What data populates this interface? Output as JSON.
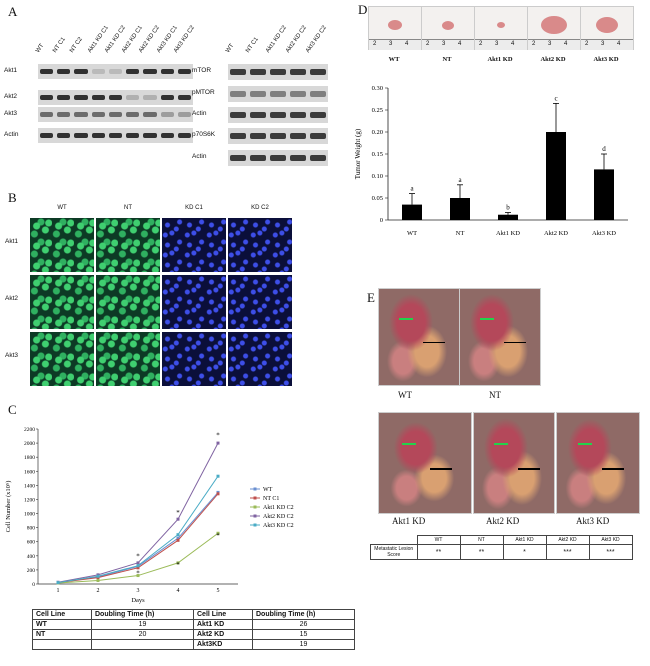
{
  "panels": {
    "a": "A",
    "b": "B",
    "c": "C",
    "d": "D",
    "e": "E"
  },
  "blot_left": {
    "lanes": [
      "WT",
      "NT C1",
      "NT C2",
      "Akt1 KD C1",
      "Akt1 KD C2",
      "Akt2 KD C1",
      "Akt2 KD C2",
      "Akt3 KD C1",
      "Akt3 KD C2"
    ],
    "rows": [
      "Akt1",
      "Akt2",
      "Akt3",
      "Actin"
    ]
  },
  "blot_right": {
    "lanes": [
      "WT",
      "NT C1",
      "Akt1 KD C2",
      "Akt2 KD C2",
      "Akt3 KD C2"
    ],
    "rows": [
      "mTOR",
      "pMTOR",
      "Actin",
      "p70S6K",
      "Actin"
    ]
  },
  "if": {
    "columns": [
      "WT",
      "NT",
      "KD C1",
      "KD C2"
    ],
    "rows": [
      "Akt1",
      "Akt2",
      "Akt3"
    ]
  },
  "chart_data": [
    {
      "type": "line",
      "xlabel": "Days",
      "ylabel": "Cell Number (x10⁵)",
      "x": [
        1,
        2,
        3,
        4,
        5
      ],
      "ylim": [
        0,
        2200
      ],
      "yticks": [
        0,
        200,
        400,
        600,
        800,
        1000,
        1200,
        1400,
        1600,
        1800,
        2000,
        2200
      ],
      "series": [
        {
          "name": "WT",
          "color": "#6a8fd0",
          "values": [
            20,
            100,
            250,
            650,
            1300
          ]
        },
        {
          "name": "NT C1",
          "color": "#c0504d",
          "values": [
            20,
            90,
            230,
            620,
            1280
          ]
        },
        {
          "name": "Akt1 KD C2",
          "color": "#9bbb59",
          "values": [
            15,
            50,
            120,
            300,
            720
          ]
        },
        {
          "name": "Akt2 KD C2",
          "color": "#8064a2",
          "values": [
            25,
            130,
            300,
            920,
            2000
          ]
        },
        {
          "name": "Akt3 KD C2",
          "color": "#4bacc6",
          "values": [
            20,
            110,
            260,
            700,
            1530
          ]
        }
      ],
      "annotations": [
        "*",
        "*",
        "*",
        "*",
        "*",
        "*"
      ]
    },
    {
      "type": "bar",
      "ylabel": "Tumor Weight (g)",
      "categories": [
        "WT",
        "NT",
        "Akt1 KD",
        "Akt2 KD",
        "Akt3 KD"
      ],
      "values": [
        0.035,
        0.05,
        0.012,
        0.2,
        0.115
      ],
      "errors": [
        0.025,
        0.03,
        0.005,
        0.065,
        0.035
      ],
      "letters": [
        "a",
        "a",
        "b",
        "c",
        "d"
      ],
      "ylim": [
        0,
        0.3
      ],
      "yticks": [
        "0",
        "0.05",
        "0.10",
        "0.15",
        "0.20",
        "0.25",
        "0.30"
      ]
    }
  ],
  "doubling_table": {
    "headers": [
      "Cell Line",
      "Doubling Time (h)",
      "Cell Line",
      "Doubling Time (h)"
    ],
    "rows": [
      [
        "WT",
        "19",
        "Akt1 KD",
        "26"
      ],
      [
        "NT",
        "20",
        "Akt2 KD",
        "15"
      ],
      [
        "",
        "",
        "Akt3KD",
        "19"
      ]
    ]
  },
  "tumor_photos": {
    "labels": [
      "WT",
      "NT",
      "Akt1 KD",
      "Akt2 KD",
      "Akt3 KD"
    ],
    "ruler_marks": [
      "2",
      "3",
      "4"
    ]
  },
  "mouse_photos": {
    "labels": [
      "WT",
      "NT",
      "Akt1 KD",
      "Akt2 KD",
      "Akt3 KD"
    ]
  },
  "metastatic_table": {
    "row_label": "Metastatic Lesion Score",
    "headers": [
      "WT",
      "NT",
      "Akt1 KD",
      "Akt2 KD",
      "Akt3 KD"
    ],
    "scores": [
      "**",
      "**",
      "*",
      "***",
      "***"
    ]
  }
}
